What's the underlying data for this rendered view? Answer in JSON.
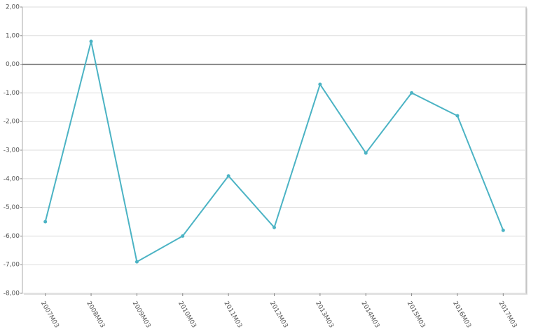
{
  "chart_data": {
    "type": "line",
    "categories": [
      "2007M03",
      "2008M03",
      "2009M03",
      "2010M03",
      "2011M03",
      "2012M03",
      "2013M03",
      "2014M03",
      "2015M03",
      "2016M03",
      "2017M03"
    ],
    "series": [
      {
        "color": "#4bb3c4",
        "values": [
          -5.5,
          0.8,
          -6.9,
          -6.0,
          -3.9,
          -5.7,
          -0.7,
          -3.1,
          -1.0,
          -1.8,
          -5.8
        ]
      }
    ],
    "ylim": [
      -8,
      2
    ],
    "yticks": [
      {
        "value": -8,
        "label": "-8,00"
      },
      {
        "value": -7,
        "label": "-7,00"
      },
      {
        "value": -6,
        "label": "-6,00"
      },
      {
        "value": -5,
        "label": "-5,00"
      },
      {
        "value": -4,
        "label": "-4,00"
      },
      {
        "value": -3,
        "label": "-3,00"
      },
      {
        "value": -2,
        "label": "-2,00"
      },
      {
        "value": -1,
        "label": "-1,00"
      },
      {
        "value": 0,
        "label": "0,00"
      },
      {
        "value": 1,
        "label": "1,00"
      },
      {
        "value": 2,
        "label": "2,00"
      }
    ],
    "grid": true
  }
}
